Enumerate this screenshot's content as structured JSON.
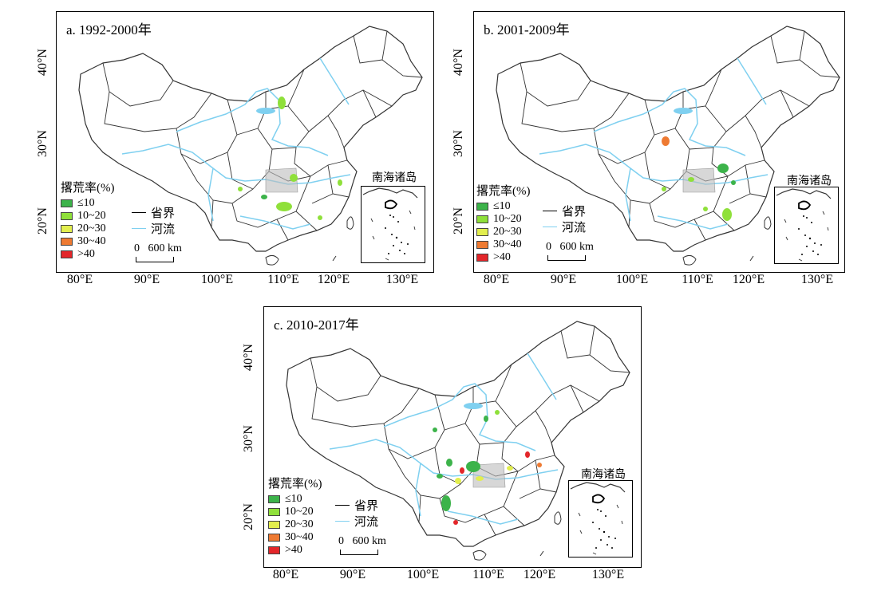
{
  "panels": [
    {
      "id": "a",
      "title": "a. 1992-2000年"
    },
    {
      "id": "b",
      "title": "b. 2001-2009年"
    },
    {
      "id": "c",
      "title": "c. 2010-2017年"
    }
  ],
  "axes": {
    "x_ticks": [
      "80°E",
      "90°E",
      "100°E",
      "110°E",
      "120°E",
      "130°E"
    ],
    "y_ticks": [
      "40°N",
      "30°N",
      "20°N"
    ]
  },
  "legend": {
    "title": "撂荒率(%)",
    "classes": [
      {
        "label": "≤10",
        "color": "#3cb34a"
      },
      {
        "label": "10~20",
        "color": "#8fe03a"
      },
      {
        "label": "20~30",
        "color": "#e2ee4e"
      },
      {
        "label": "30~40",
        "color": "#ee7a32"
      },
      {
        "label": ">40",
        "color": "#e3262a"
      }
    ],
    "symbols": [
      {
        "label": "省界",
        "color": "#000000"
      },
      {
        "label": "河流",
        "color": "#7fd0f0"
      }
    ]
  },
  "scale_bar": {
    "zero": "0",
    "distance": "600 km"
  },
  "inset": {
    "title": "南海诸岛"
  },
  "colors": {
    "river": "#7fd0f0",
    "border": "#333333",
    "highlight": "#bdbdbd"
  }
}
